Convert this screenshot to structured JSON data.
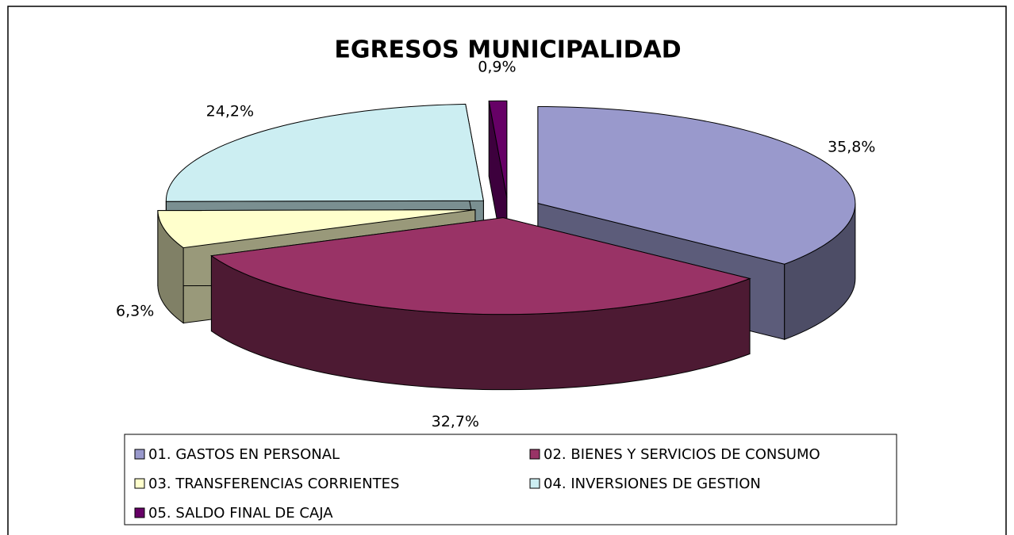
{
  "chart_data": {
    "type": "pie",
    "title": "EGRESOS MUNICIPALIDAD",
    "categories": [
      "01. GASTOS EN PERSONAL",
      "02. BIENES Y SERVICIOS DE CONSUMO",
      "03. TRANSFERENCIAS CORRIENTES",
      "04. INVERSIONES DE GESTION",
      "05. SALDO FINAL DE CAJA"
    ],
    "values": [
      35.8,
      32.7,
      6.3,
      24.2,
      0.9
    ],
    "value_labels": [
      "35,8%",
      "32,7%",
      "6,3%",
      "24,2%",
      "0,9%"
    ],
    "colors": [
      "#9999cc",
      "#993366",
      "#ffffcc",
      "#cceef2",
      "#660066"
    ]
  }
}
